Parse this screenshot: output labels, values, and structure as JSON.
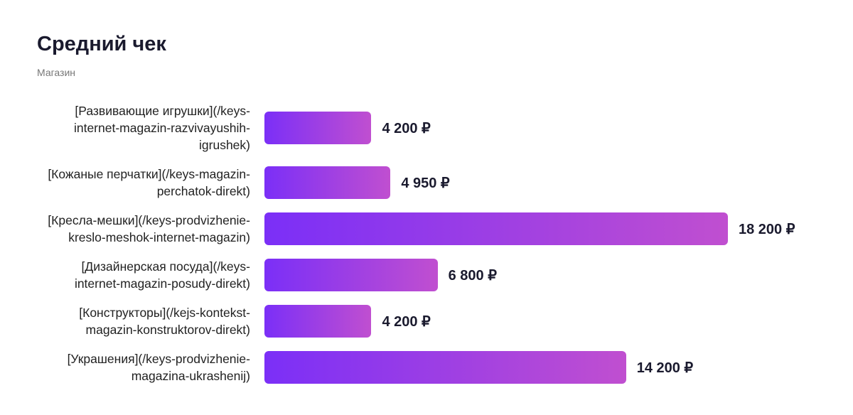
{
  "chart_data": {
    "type": "bar",
    "orientation": "horizontal",
    "title": "Средний чек",
    "subtitle": "Магазин",
    "categories": [
      "[Развивающие игрушки](/keys-internet-magazin-razvivayushih-igrushek)",
      "[Кожаные перчатки](/keys-magazin-perchatok-direkt)",
      "[Кресла-мешки](/keys-prodvizhenie-kreslo-meshok-internet-magazin)",
      "[Дизайнерская посуда](/keys-internet-magazin-posudy-direkt)",
      "[Конструкторы](/kejs-kontekst-magazin-konstruktorov-direkt)",
      "[Украшения](/keys-prodvizhenie-magazina-ukrashenij)"
    ],
    "values": [
      4200,
      4950,
      18200,
      6800,
      4200,
      14200
    ],
    "value_labels": [
      "4 200 ₽",
      "4 950 ₽",
      "18 200 ₽",
      "6 800 ₽",
      "4 200 ₽",
      "14 200 ₽"
    ],
    "color": [
      "#7b2ff7",
      "#c04fd0"
    ]
  }
}
